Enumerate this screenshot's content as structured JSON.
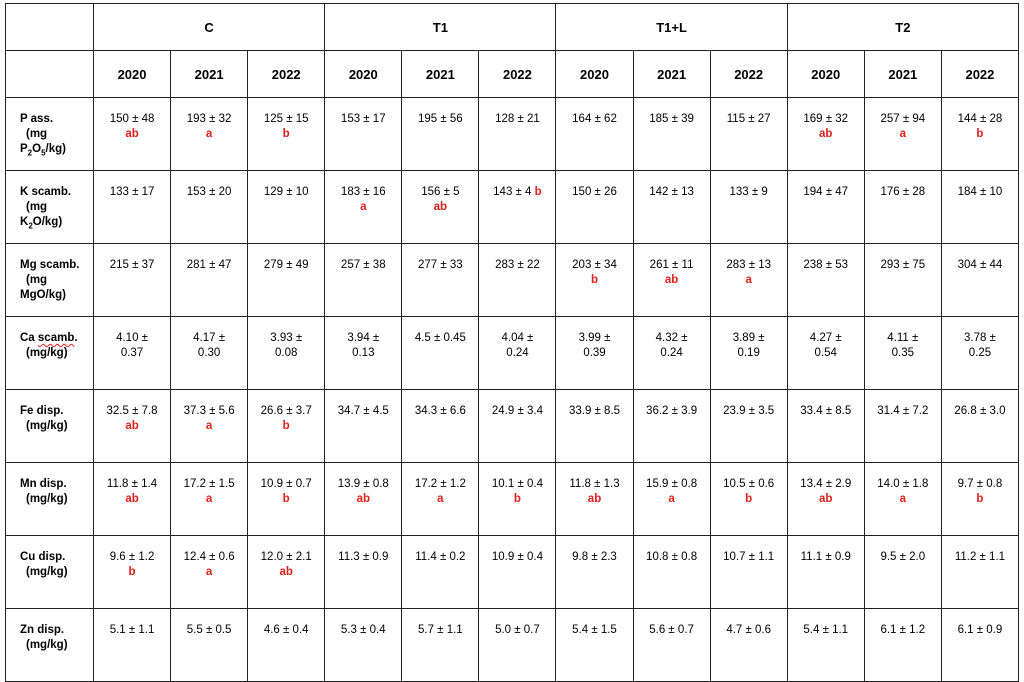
{
  "groups": [
    "C",
    "T1",
    "T1+L",
    "T2"
  ],
  "years": [
    "2020",
    "2021",
    "2022"
  ],
  "rows": [
    {
      "p1": "P ass.",
      "p2": "(mg",
      "p3a": "P",
      "p3s1": "2",
      "p3b": "O",
      "p3s2": "5",
      "p3c": "/kg)",
      "cells": [
        {
          "v": "150 ± 48",
          "s": "ab"
        },
        {
          "v": "193 ± 32",
          "s": "a"
        },
        {
          "v": "125 ± 15",
          "s": "b"
        },
        {
          "v": "153 ± 17"
        },
        {
          "v": "195 ± 56"
        },
        {
          "v": "128 ± 21"
        },
        {
          "v": "164 ± 62"
        },
        {
          "v": "185 ± 39"
        },
        {
          "v": "115 ± 27"
        },
        {
          "v": "169 ± 32",
          "s": "ab"
        },
        {
          "v": "257 ± 94",
          "s": "a"
        },
        {
          "v": "144 ± 28",
          "s": "b"
        }
      ]
    },
    {
      "p1": "K scamb.",
      "p2": "(mg",
      "p3a": "K",
      "p3s1": "2",
      "p3b": "O/kg)",
      "cells": [
        {
          "v": "133 ± 17"
        },
        {
          "v": "153 ± 20"
        },
        {
          "v": "129 ± 10"
        },
        {
          "v": "183 ± 16",
          "s": "a"
        },
        {
          "v": "156 ± 5",
          "s": "ab"
        },
        {
          "v": "143 ± 4",
          "si": "b"
        },
        {
          "v": "150 ± 26"
        },
        {
          "v": "142 ± 13"
        },
        {
          "v": "133 ± 9"
        },
        {
          "v": "194 ± 47"
        },
        {
          "v": "176 ± 28"
        },
        {
          "v": "184 ± 10"
        }
      ]
    },
    {
      "p1": "Mg scamb.",
      "p2": "(mg",
      "p3a": "MgO/kg)",
      "cells": [
        {
          "v": "215 ± 37"
        },
        {
          "v": "281 ± 47"
        },
        {
          "v": "279 ± 49"
        },
        {
          "v": "257 ± 38"
        },
        {
          "v": "277 ± 33"
        },
        {
          "v": "283 ± 22"
        },
        {
          "v": "203 ± 34",
          "s": "b"
        },
        {
          "v": "261 ± 11",
          "s": "ab"
        },
        {
          "v": "283 ± 13",
          "s": "a"
        },
        {
          "v": "238 ± 53"
        },
        {
          "v": "293 ± 75"
        },
        {
          "v": "304 ± 44"
        }
      ]
    },
    {
      "p1a": "Ca ",
      "p1w": "scamb",
      "p1b": ".",
      "p2": "(mg/kg)",
      "cells": [
        {
          "v": "4.10 ±",
          "v2": "0.37"
        },
        {
          "v": "4.17 ±",
          "v2": "0.30"
        },
        {
          "v": "3.93 ±",
          "v2": "0.08"
        },
        {
          "v": "3.94 ±",
          "v2": "0.13"
        },
        {
          "v": "4.5 ± 0.45"
        },
        {
          "v": "4.04 ±",
          "v2": "0.24"
        },
        {
          "v": "3.99 ±",
          "v2": "0.39"
        },
        {
          "v": "4.32 ±",
          "v2": "0.24"
        },
        {
          "v": "3.89 ±",
          "v2": "0.19"
        },
        {
          "v": "4.27 ±",
          "v2": "0.54"
        },
        {
          "v": "4.11 ±",
          "v2": "0.35"
        },
        {
          "v": "3.78 ±",
          "v2": "0.25"
        }
      ]
    },
    {
      "p1": "Fe disp.",
      "p2": "(mg/kg)",
      "cells": [
        {
          "v": "32.5 ± 7.8",
          "s": "ab"
        },
        {
          "v": "37.3 ± 5.6",
          "s": "a"
        },
        {
          "v": "26.6 ± 3.7",
          "s": "b"
        },
        {
          "v": "34.7 ± 4.5"
        },
        {
          "v": "34.3 ± 6.6"
        },
        {
          "v": "24.9 ± 3.4"
        },
        {
          "v": "33.9 ± 8.5"
        },
        {
          "v": "36.2 ± 3.9"
        },
        {
          "v": "23.9 ± 3.5"
        },
        {
          "v": "33.4 ± 8.5"
        },
        {
          "v": "31.4 ± 7.2"
        },
        {
          "v": "26.8 ± 3.0"
        }
      ]
    },
    {
      "p1": "Mn disp.",
      "p2": "(mg/kg)",
      "cells": [
        {
          "v": "11.8 ± 1.4",
          "s": "ab"
        },
        {
          "v": "17.2 ± 1.5",
          "s": "a"
        },
        {
          "v": "10.9 ± 0.7",
          "s": "b"
        },
        {
          "v": "13.9 ± 0.8",
          "s": "ab"
        },
        {
          "v": "17.2 ± 1.2",
          "s": "a"
        },
        {
          "v": "10.1 ± 0.4",
          "s": "b"
        },
        {
          "v": "11.8 ± 1.3",
          "s": "ab"
        },
        {
          "v": "15.9 ± 0.8",
          "s": "a"
        },
        {
          "v": "10.5 ± 0.6",
          "s": "b"
        },
        {
          "v": "13.4 ± 2.9",
          "s": "ab"
        },
        {
          "v": "14.0 ± 1.8",
          "s": "a"
        },
        {
          "v": "9.7 ± 0.8",
          "s": "b"
        }
      ]
    },
    {
      "p1": "Cu disp.",
      "p2": "(mg/kg)",
      "cells": [
        {
          "v": "9.6 ± 1.2",
          "s": "b"
        },
        {
          "v": "12.4 ± 0.6",
          "s": "a"
        },
        {
          "v": "12.0 ± 2.1",
          "s": "ab"
        },
        {
          "v": "11.3 ± 0.9"
        },
        {
          "v": "11.4 ± 0.2"
        },
        {
          "v": "10.9 ± 0.4"
        },
        {
          "v": "9.8 ± 2.3"
        },
        {
          "v": "10.8 ± 0.8"
        },
        {
          "v": "10.7 ± 1.1"
        },
        {
          "v": "11.1 ± 0.9"
        },
        {
          "v": "9.5 ± 2.0"
        },
        {
          "v": "11.2 ± 1.1"
        }
      ]
    },
    {
      "p1": "Zn disp.",
      "p2": "(mg/kg)",
      "cells": [
        {
          "v": "5.1 ± 1.1"
        },
        {
          "v": "5.5 ± 0.5"
        },
        {
          "v": "4.6 ± 0.4"
        },
        {
          "v": "5.3 ± 0.4"
        },
        {
          "v": "5.7 ± 1.1"
        },
        {
          "v": "5.0 ± 0.7"
        },
        {
          "v": "5.4 ± 1.5"
        },
        {
          "v": "5.6 ± 0.7"
        },
        {
          "v": "4.7 ± 0.6"
        },
        {
          "v": "5.4 ± 1.1"
        },
        {
          "v": "6.1 ± 1.2"
        },
        {
          "v": "6.1 ± 0.9"
        }
      ]
    }
  ]
}
